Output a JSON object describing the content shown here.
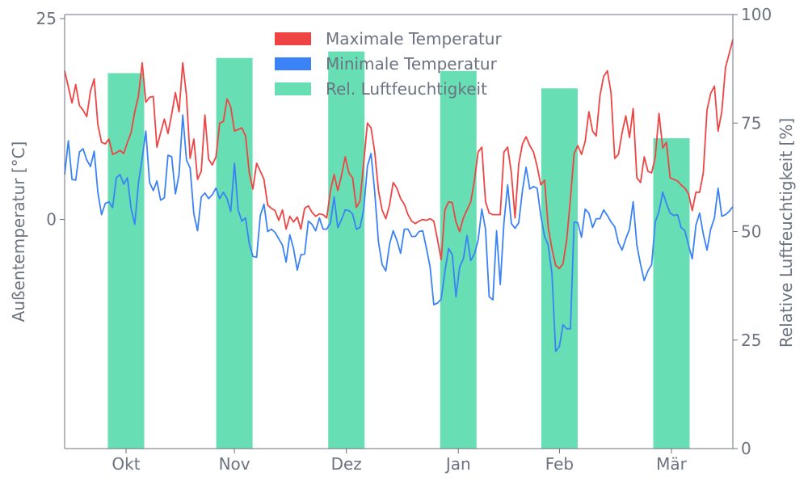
{
  "chart_data": {
    "type": "line+bar",
    "title": "",
    "xlabel": "",
    "ylabel_left": "Außentemperatur [°C]",
    "ylabel_right": "Relative Luftfeuchtigkeit [%]",
    "x_tick_labels": [
      "Okt",
      "Nov",
      "Dez",
      "Jan",
      "Feb",
      "Mär"
    ],
    "x_range_days": [
      0,
      185
    ],
    "x_tick_days": [
      17,
      47,
      78,
      109,
      137,
      168
    ],
    "ylim_left": [
      -28.5,
      25.5
    ],
    "yticks_left": [
      0,
      25
    ],
    "ylim_right": [
      0,
      100
    ],
    "yticks_right": [
      0,
      25,
      50,
      75,
      100
    ],
    "grid": false,
    "legend_position": "top-center",
    "legend": [
      {
        "label": "Maximale Temperatur",
        "color": "#ef4444"
      },
      {
        "label": "Minimale Temperatur",
        "color": "#3b82f6"
      },
      {
        "label": "Rel. Luftfeuchtigkeit",
        "color": "#34d399"
      }
    ],
    "series": [
      {
        "name": "Maximale Temperatur",
        "axis": "left",
        "color": "#ef4444",
        "values": [
          18.5,
          16.5,
          14.5,
          16.8,
          14.2,
          13.6,
          12.8,
          16.0,
          17.5,
          11.8,
          9.6,
          9.4,
          10.0,
          8.1,
          8.3,
          8.6,
          8.2,
          9.6,
          10.8,
          13.4,
          15.4,
          19.5,
          14.6,
          15.2,
          15.3,
          9.0,
          10.8,
          12.5,
          10.7,
          13.1,
          15.8,
          13.4,
          19.5,
          15.4,
          7.6,
          10.0,
          5.0,
          6.0,
          13.0,
          7.5,
          6.8,
          7.8,
          12.0,
          12.2,
          15.0,
          14.0,
          11.0,
          11.2,
          11.4,
          10.4,
          5.8,
          3.8,
          7.0,
          6.0,
          5.0,
          1.8,
          1.4,
          1.1,
          -0.1,
          1.2,
          -1.2,
          0.4,
          -0.3,
          0.3,
          -1.2,
          1.4,
          1.7,
          0.9,
          0.4,
          0.7,
          0.6,
          0.2,
          3.6,
          5.6,
          3.6,
          5.5,
          7.8,
          5.8,
          5.2,
          1.5,
          2.3,
          7.0,
          12.0,
          11.4,
          8.4,
          3.6,
          1.2,
          0.1,
          1.8,
          4.6,
          3.9,
          2.6,
          1.9,
          0.6,
          -0.2,
          -0.5,
          -0.2,
          0.0,
          -0.1,
          0.1,
          -0.2,
          -2.5,
          -5.0,
          1.2,
          2.2,
          2.1,
          -0.3,
          -1.5,
          0.2,
          1.2,
          2.2,
          4.9,
          8.4,
          9.0,
          2.2,
          0.8,
          0.6,
          0.6,
          0.6,
          8.4,
          9.0,
          5.8,
          0.2,
          6.9,
          9.4,
          10.3,
          9.2,
          8.4,
          6.6,
          4.3,
          4.9,
          -1.0,
          -3.6,
          -5.7,
          -6.1,
          -5.5,
          -2.5,
          2.6,
          8.2,
          9.2,
          8.1,
          9.7,
          13.4,
          11.0,
          10.4,
          15.4,
          17.8,
          18.5,
          15.8,
          7.6,
          8.1,
          10.8,
          12.9,
          10.2,
          13.8,
          5.2,
          4.6,
          7.8,
          6.0,
          5.8,
          7.8,
          13.2,
          8.9,
          9.6,
          5.2,
          5.0,
          4.8,
          4.3,
          3.9,
          3.2,
          1.1,
          3.4,
          3.4,
          5.8,
          13.6,
          15.7,
          16.6,
          11.0,
          13.4,
          18.9,
          20.6,
          22.4
        ]
      },
      {
        "name": "Minimale Temperatur",
        "axis": "left",
        "color": "#3b82f6",
        "values": [
          5.6,
          9.8,
          5.0,
          4.9,
          8.4,
          8.8,
          7.4,
          6.6,
          8.5,
          3.4,
          0.6,
          2.0,
          2.2,
          1.5,
          5.2,
          5.6,
          4.4,
          5.2,
          1.4,
          -0.6,
          4.6,
          7.6,
          11.0,
          4.6,
          3.6,
          4.8,
          2.4,
          2.7,
          8.0,
          7.8,
          3.2,
          5.6,
          13.0,
          7.4,
          6.4,
          0.7,
          -1.4,
          2.8,
          3.3,
          2.6,
          3.1,
          3.9,
          2.6,
          3.4,
          2.6,
          1.0,
          7.0,
          1.2,
          -0.2,
          0.2,
          -3.0,
          -4.6,
          -4.7,
          0.5,
          1.9,
          -1.5,
          -1.2,
          -1.6,
          -2.4,
          -3.2,
          -5.3,
          -1.9,
          -3.6,
          -6.3,
          -4.4,
          -4.3,
          -0.2,
          -0.6,
          -1.4,
          0.2,
          -1.2,
          -1.2,
          -0.4,
          2.8,
          -1.0,
          0.0,
          1.2,
          1.1,
          0.7,
          -1.2,
          -1.0,
          1.2,
          6.6,
          8.2,
          3.4,
          -2.8,
          -5.6,
          -6.4,
          -3.1,
          -1.4,
          -2.6,
          -4.2,
          -1.2,
          -1.2,
          -2.1,
          -2.1,
          -1.5,
          -1.4,
          -3.6,
          -5.9,
          -10.6,
          -10.4,
          -9.9,
          -6.5,
          -3.6,
          -4.4,
          -9.6,
          -5.9,
          -4.9,
          -2.0,
          -5.1,
          -4.3,
          -2.6,
          1.3,
          -1.2,
          -9.6,
          -10.0,
          -1.4,
          -8.1,
          -0.4,
          4.3,
          -0.5,
          -1.1,
          -0.4,
          3.6,
          6.5,
          3.8,
          4.1,
          3.9,
          0.4,
          -2.1,
          -3.2,
          -6.7,
          -16.4,
          -15.8,
          -13.1,
          -13.6,
          -13.6,
          -0.3,
          -0.4,
          -2.2,
          1.3,
          0.8,
          -1.0,
          0.1,
          0.1,
          1.2,
          0.5,
          -0.3,
          -0.9,
          -2.9,
          -3.8,
          -2.4,
          -1.2,
          2.2,
          -3.2,
          -5.6,
          -7.6,
          -6.4,
          -5.6,
          -0.3,
          1.0,
          3.4,
          2.0,
          0.8,
          0.5,
          0.6,
          -1.0,
          -1.4,
          -3.2,
          -4.9,
          -0.7,
          0.8,
          -1.8,
          -3.8,
          -1.2,
          0.2,
          3.9,
          0.4,
          0.6,
          1.0,
          1.6
        ]
      }
    ],
    "bars": {
      "name": "Rel. Luftfeuchtigkeit",
      "axis": "right",
      "color": "#34d399",
      "categories": [
        "Okt",
        "Nov",
        "Dez",
        "Jan",
        "Feb",
        "Mär"
      ],
      "values": [
        86.5,
        90,
        91.5,
        87,
        83,
        71.5
      ]
    }
  }
}
